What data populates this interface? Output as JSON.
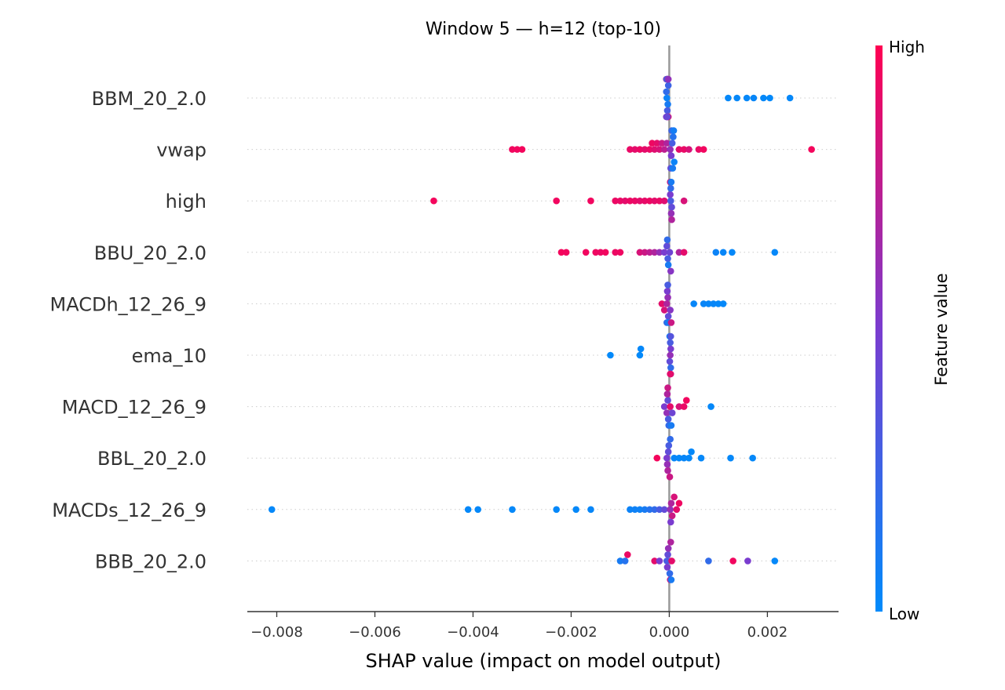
{
  "chart_data": {
    "type": "scatter",
    "subtype": "shap-beeswarm",
    "title": "Window 5 — h=12 (top-10)",
    "xlabel": "SHAP value (impact on model output)",
    "xlim": [
      -0.0086,
      0.00345
    ],
    "xticks": [
      -0.008,
      -0.006,
      -0.004,
      -0.002,
      0.0,
      0.002
    ],
    "xtick_labels": [
      "−0.008",
      "−0.006",
      "−0.004",
      "−0.002",
      "0.000",
      "0.002"
    ],
    "grid": "horizontal dotted row lines",
    "colorbar": {
      "title": "Feature value",
      "high_label": "High",
      "low_label": "Low",
      "high_color": "#ff0052",
      "low_color": "#008bfb",
      "placement": "right"
    },
    "features": [
      {
        "name": "BBM_20_2.0",
        "points": [
          [
            -5e-05,
            0.05
          ],
          [
            -3e-05,
            0.1
          ],
          [
            -6e-05,
            0.2
          ],
          [
            -4e-05,
            0.3
          ],
          [
            -2e-05,
            0.25
          ],
          [
            -5e-05,
            0.35
          ],
          [
            -3e-05,
            0.4
          ],
          [
            -4e-05,
            0.5
          ],
          [
            -6e-05,
            0.45
          ],
          [
            -2e-05,
            0.6
          ],
          [
            -5e-05,
            0.55
          ],
          [
            -3e-05,
            0.65
          ],
          [
            -4e-05,
            0.7
          ],
          [
            -6e-05,
            0.75
          ],
          [
            -2e-05,
            0.8
          ],
          [
            -4e-05,
            0.85
          ],
          [
            -3e-05,
            0.9
          ],
          [
            -5e-05,
            0.15
          ],
          [
            -4e-05,
            0.42
          ],
          [
            -3e-05,
            0.58
          ],
          [
            0.0012,
            0.02
          ],
          [
            0.00138,
            0.02
          ],
          [
            0.00158,
            0.02
          ],
          [
            0.00172,
            0.03
          ],
          [
            0.00192,
            0.02
          ],
          [
            0.00205,
            0.01
          ],
          [
            0.00246,
            0.02
          ]
        ]
      },
      {
        "name": "vwap",
        "points": [
          [
            -0.0032,
            0.95
          ],
          [
            -0.0031,
            0.95
          ],
          [
            -0.003,
            0.96
          ],
          [
            -0.0008,
            0.92
          ],
          [
            -0.0007,
            0.9
          ],
          [
            -0.0006,
            0.93
          ],
          [
            -0.0005,
            0.9
          ],
          [
            -0.0004,
            0.92
          ],
          [
            -0.00035,
            0.94
          ],
          [
            -0.0003,
            0.88
          ],
          [
            -0.00025,
            0.9
          ],
          [
            -0.0002,
            0.85
          ],
          [
            -0.00015,
            0.8
          ],
          [
            -0.0001,
            0.75
          ],
          [
            -5e-05,
            0.7
          ],
          [
            2e-05,
            0.6
          ],
          [
            4e-05,
            0.5
          ],
          [
            6e-05,
            0.3
          ],
          [
            8e-05,
            0.15
          ],
          [
            0.0001,
            0.05
          ],
          [
            5e-05,
            0.25
          ],
          [
            3e-05,
            0.4
          ],
          [
            7e-05,
            0.1
          ],
          [
            9e-05,
            0.08
          ],
          [
            0.0002,
            0.9
          ],
          [
            0.0003,
            0.92
          ],
          [
            0.0004,
            0.85
          ],
          [
            0.0006,
            0.92
          ],
          [
            0.0007,
            0.95
          ],
          [
            0.0029,
            0.96
          ]
        ]
      },
      {
        "name": "high",
        "points": [
          [
            -0.0048,
            0.96
          ],
          [
            -0.0023,
            0.95
          ],
          [
            -0.0016,
            0.95
          ],
          [
            -0.0011,
            0.93
          ],
          [
            -0.001,
            0.92
          ],
          [
            -0.0009,
            0.9
          ],
          [
            -0.0008,
            0.93
          ],
          [
            -0.0007,
            0.92
          ],
          [
            -0.0006,
            0.9
          ],
          [
            -0.0005,
            0.91
          ],
          [
            -0.0004,
            0.93
          ],
          [
            -0.0003,
            0.9
          ],
          [
            -0.0002,
            0.92
          ],
          [
            -0.0001,
            0.88
          ],
          [
            3e-05,
            0.3
          ],
          [
            5e-05,
            0.4
          ],
          [
            2e-05,
            0.5
          ],
          [
            4e-05,
            0.6
          ],
          [
            3e-05,
            0.2
          ],
          [
            5e-05,
            0.7
          ],
          [
            2e-05,
            0.8
          ],
          [
            4e-05,
            0.1
          ],
          [
            0.0003,
            0.85
          ]
        ]
      },
      {
        "name": "BBU_20_2.0",
        "points": [
          [
            -0.0022,
            0.96
          ],
          [
            -0.0021,
            0.95
          ],
          [
            -0.0017,
            0.95
          ],
          [
            -0.0015,
            0.94
          ],
          [
            -0.0014,
            0.93
          ],
          [
            -0.0013,
            0.95
          ],
          [
            -0.0011,
            0.93
          ],
          [
            -0.001,
            0.94
          ],
          [
            -0.0006,
            0.85
          ],
          [
            -0.0005,
            0.8
          ],
          [
            -0.0004,
            0.75
          ],
          [
            -0.0003,
            0.7
          ],
          [
            -0.0002,
            0.6
          ],
          [
            -0.0001,
            0.5
          ],
          [
            -5e-05,
            0.4
          ],
          [
            -3e-05,
            0.3
          ],
          [
            -4e-05,
            0.2
          ],
          [
            -2e-05,
            0.1
          ],
          [
            1e-05,
            0.45
          ],
          [
            3e-05,
            0.55
          ],
          [
            0.0002,
            0.7
          ],
          [
            0.0003,
            0.9
          ],
          [
            0.00095,
            0.05
          ],
          [
            0.0011,
            0.03
          ],
          [
            0.00128,
            0.02
          ],
          [
            0.00215,
            0.02
          ]
        ]
      },
      {
        "name": "MACDh_12_26_9",
        "points": [
          [
            -0.00015,
            0.9
          ],
          [
            -0.0001,
            0.85
          ],
          [
            -5e-05,
            0.7
          ],
          [
            -3e-05,
            0.6
          ],
          [
            -4e-05,
            0.5
          ],
          [
            -2e-05,
            0.4
          ],
          [
            -3e-05,
            0.3
          ],
          [
            -5e-05,
            0.2
          ],
          [
            -2e-05,
            0.1
          ],
          [
            2e-05,
            0.55
          ],
          [
            4e-05,
            0.8
          ],
          [
            0.0005,
            0.03
          ],
          [
            0.0007,
            0.04
          ],
          [
            0.0008,
            0.03
          ],
          [
            0.0009,
            0.03
          ],
          [
            0.001,
            0.02
          ],
          [
            0.0011,
            0.02
          ]
        ]
      },
      {
        "name": "ema_10",
        "points": [
          [
            -0.0012,
            0.01
          ],
          [
            -0.0006,
            0.01
          ],
          [
            -0.00058,
            0.02
          ],
          [
            2e-05,
            0.6
          ],
          [
            3e-05,
            0.5
          ],
          [
            1e-05,
            0.4
          ],
          [
            2e-05,
            0.3
          ],
          [
            3e-05,
            0.2
          ],
          [
            1e-05,
            0.15
          ],
          [
            2e-05,
            0.7
          ],
          [
            3e-05,
            0.8
          ],
          [
            1e-05,
            0.1
          ],
          [
            2e-05,
            0.9
          ],
          [
            3e-05,
            0.35
          ]
        ]
      },
      {
        "name": "MACD_12_26_9",
        "points": [
          [
            -0.0001,
            0.5
          ],
          [
            -5e-05,
            0.6
          ],
          [
            -3e-05,
            0.4
          ],
          [
            -2e-05,
            0.3
          ],
          [
            -4e-05,
            0.7
          ],
          [
            -1e-05,
            0.2
          ],
          [
            -3e-05,
            0.8
          ],
          [
            2e-05,
            0.9
          ],
          [
            4e-05,
            0.1
          ],
          [
            6e-05,
            0.45
          ],
          [
            0.0002,
            0.85
          ],
          [
            0.0003,
            0.92
          ],
          [
            0.00035,
            0.95
          ],
          [
            0.00085,
            0.02
          ]
        ]
      },
      {
        "name": "BBL_20_2.0",
        "points": [
          [
            -0.00025,
            0.96
          ],
          [
            -5e-05,
            0.5
          ],
          [
            -2e-05,
            0.4
          ],
          [
            -4e-05,
            0.6
          ],
          [
            -1e-05,
            0.3
          ],
          [
            -3e-05,
            0.7
          ],
          [
            2e-05,
            0.2
          ],
          [
            1e-05,
            0.8
          ],
          [
            0.0001,
            0.03
          ],
          [
            0.0002,
            0.02
          ],
          [
            0.0003,
            0.03
          ],
          [
            0.0004,
            0.02
          ],
          [
            0.00045,
            0.02
          ],
          [
            0.00065,
            0.02
          ],
          [
            0.00125,
            0.02
          ],
          [
            0.0017,
            0.02
          ]
        ]
      },
      {
        "name": "MACDs_12_26_9",
        "points": [
          [
            -0.0081,
            0.02
          ],
          [
            -0.0041,
            0.02
          ],
          [
            -0.0039,
            0.02
          ],
          [
            -0.0032,
            0.02
          ],
          [
            -0.0023,
            0.02
          ],
          [
            -0.0019,
            0.02
          ],
          [
            -0.0016,
            0.03
          ],
          [
            -0.0008,
            0.05
          ],
          [
            -0.0007,
            0.06
          ],
          [
            -0.0006,
            0.06
          ],
          [
            -0.0005,
            0.1
          ],
          [
            -0.0004,
            0.15
          ],
          [
            -0.0003,
            0.2
          ],
          [
            -0.0002,
            0.3
          ],
          [
            -0.0001,
            0.4
          ],
          [
            2e-05,
            0.6
          ],
          [
            4e-05,
            0.7
          ],
          [
            6e-05,
            0.8
          ],
          [
            0.0001,
            0.85
          ],
          [
            0.00015,
            0.9
          ],
          [
            0.0002,
            0.94
          ],
          [
            3e-05,
            0.5
          ]
        ]
      },
      {
        "name": "BBB_20_2.0",
        "points": [
          [
            -0.001,
            0.1
          ],
          [
            -0.0009,
            0.15
          ],
          [
            -0.00085,
            0.93
          ],
          [
            -0.0003,
            0.9
          ],
          [
            -0.0002,
            0.5
          ],
          [
            -5e-05,
            0.3
          ],
          [
            -3e-05,
            0.4
          ],
          [
            -4e-05,
            0.5
          ],
          [
            -2e-05,
            0.6
          ],
          [
            1e-05,
            0.2
          ],
          [
            3e-05,
            0.7
          ],
          [
            2e-05,
            0.8
          ],
          [
            4e-05,
            0.1
          ],
          [
            5e-05,
            0.9
          ],
          [
            0.0008,
            0.2
          ],
          [
            0.0013,
            0.95
          ],
          [
            0.0016,
            0.5
          ],
          [
            0.00215,
            0.02
          ]
        ]
      }
    ]
  }
}
